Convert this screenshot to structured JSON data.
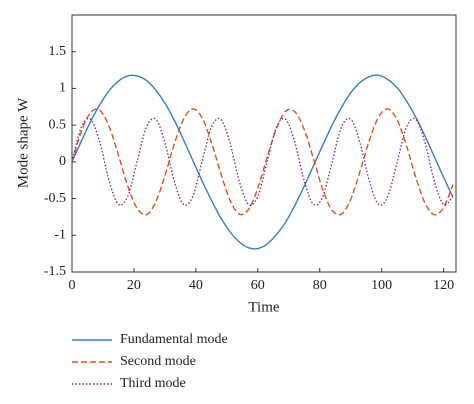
{
  "chart_data": {
    "type": "line",
    "xlabel": "Time",
    "ylabel": "Mode shape W",
    "x": [
      0,
      3,
      6,
      9,
      12,
      15,
      18,
      21,
      24,
      27,
      30,
      33,
      36,
      39,
      42,
      45,
      48,
      51,
      54,
      57,
      60,
      63,
      66,
      69,
      72,
      75,
      78,
      81,
      84,
      87,
      90,
      93,
      96,
      99,
      102,
      105,
      108,
      111,
      114,
      117,
      120,
      123
    ],
    "series": [
      {
        "name": "Fundamental mode",
        "color": "#3b7dc4",
        "dash": "solid",
        "values": [
          0,
          0.28,
          0.55,
          0.78,
          0.97,
          1.1,
          1.17,
          1.17,
          1.11,
          0.98,
          0.8,
          0.57,
          0.3,
          0.02,
          -0.26,
          -0.52,
          -0.76,
          -0.95,
          -1.09,
          -1.17,
          -1.18,
          -1.12,
          -0.99,
          -0.82,
          -0.59,
          -0.33,
          -0.05,
          0.23,
          0.5,
          0.74,
          0.94,
          1.08,
          1.16,
          1.18,
          1.12,
          1.01,
          0.83,
          0.61,
          0.35,
          0.07,
          -0.21,
          -0.48
        ]
      },
      {
        "name": "Second mode",
        "color": "#d95319",
        "dash": "dashed",
        "values": [
          0,
          0.41,
          0.67,
          0.7,
          0.48,
          0.09,
          -0.33,
          -0.63,
          -0.72,
          -0.55,
          -0.19,
          0.24,
          0.58,
          0.72,
          0.6,
          0.27,
          -0.15,
          -0.52,
          -0.71,
          -0.65,
          -0.36,
          0.06,
          0.45,
          0.69,
          0.68,
          0.44,
          0.04,
          -0.38,
          -0.66,
          -0.71,
          -0.51,
          -0.13,
          0.29,
          0.61,
          0.72,
          0.57,
          0.22,
          -0.21,
          -0.56,
          -0.72,
          -0.62,
          -0.31
        ]
      },
      {
        "name": "Third mode",
        "color": "#7e2f8e",
        "dash": "dotted",
        "values": [
          0,
          0.47,
          0.58,
          0.26,
          -0.26,
          -0.58,
          -0.47,
          0,
          0.47,
          0.58,
          0.26,
          -0.26,
          -0.58,
          -0.47,
          0,
          0.47,
          0.58,
          0.26,
          -0.26,
          -0.58,
          -0.47,
          0,
          0.47,
          0.58,
          0.26,
          -0.26,
          -0.58,
          -0.47,
          0,
          0.47,
          0.58,
          0.26,
          -0.26,
          -0.58,
          -0.47,
          0,
          0.47,
          0.58,
          0.26,
          -0.26,
          -0.58,
          -0.47
        ]
      }
    ],
    "xlim": [
      0,
      124
    ],
    "ylim": [
      -1.5,
      2
    ],
    "xticks": [
      0,
      20,
      40,
      60,
      80,
      100,
      120
    ],
    "yticks": [
      -1.5,
      -1,
      -0.5,
      0,
      0.5,
      1,
      1.5
    ],
    "legend": "below"
  }
}
